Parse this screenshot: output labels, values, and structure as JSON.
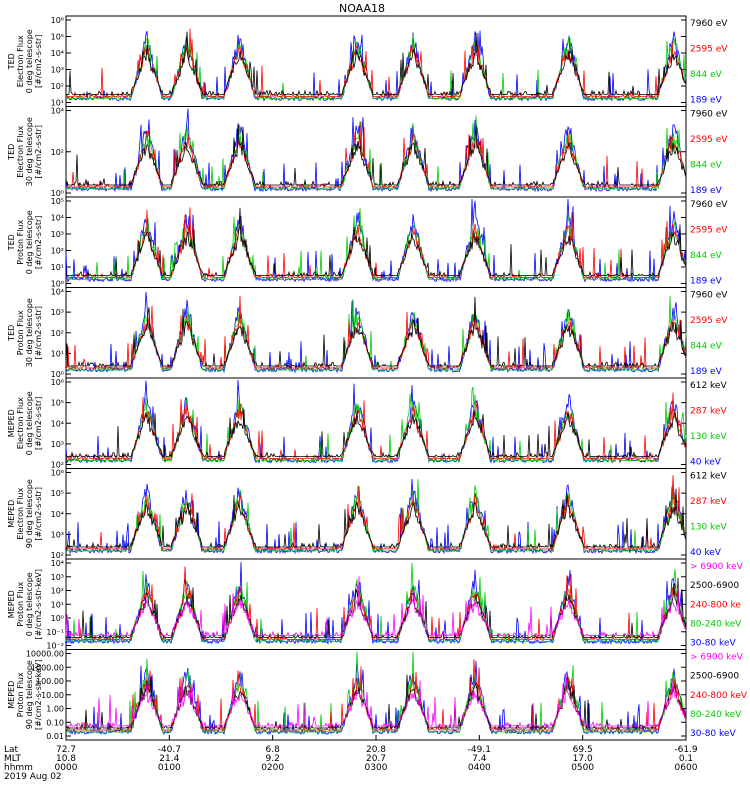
{
  "title": "NOAA18",
  "colors": {
    "black": "#000000",
    "red": "#ff0000",
    "green": "#00cc00",
    "blue": "#0000ff",
    "magenta": "#ff00ff"
  },
  "chart_data": [
    {
      "type": "line",
      "ylabel": [
        "TED",
        "Electron Flux",
        "0 deg telescope",
        "[#/cm2-s-str]"
      ],
      "yscale": "log",
      "yticks": [
        "10¹",
        "10²",
        "10³",
        "10⁴",
        "10⁵",
        "10⁶"
      ],
      "legend": [
        {
          "label": "7960 eV",
          "color": "#000000"
        },
        {
          "label": "2595 eV",
          "color": "#ff0000"
        },
        {
          "label": "844 eV",
          "color": "#00cc00"
        },
        {
          "label": "189 eV",
          "color": "#0000ff"
        }
      ]
    },
    {
      "type": "line",
      "ylabel": [
        "TED",
        "Electron Flux",
        "30 deg telescope",
        "[#/cm2-s-str]"
      ],
      "yscale": "log",
      "yticks": [
        "10⁰",
        "10²",
        "10⁴"
      ],
      "legend": [
        {
          "label": "7960 eV",
          "color": "#000000"
        },
        {
          "label": "2595 eV",
          "color": "#ff0000"
        },
        {
          "label": "844 eV",
          "color": "#00cc00"
        },
        {
          "label": "189 eV",
          "color": "#0000ff"
        }
      ]
    },
    {
      "type": "line",
      "ylabel": [
        "TED",
        "Proton Flux",
        "0 deg telescope",
        "[#/cm2-s-str]"
      ],
      "yscale": "log",
      "yticks": [
        "10⁰",
        "10¹",
        "10²",
        "10³",
        "10⁴",
        "10⁵"
      ],
      "legend": [
        {
          "label": "7960 eV",
          "color": "#000000"
        },
        {
          "label": "2595 eV",
          "color": "#ff0000"
        },
        {
          "label": "844 eV",
          "color": "#00cc00"
        },
        {
          "label": "189 eV",
          "color": "#0000ff"
        }
      ]
    },
    {
      "type": "line",
      "ylabel": [
        "TED",
        "Proton Flux",
        "30 deg telescope",
        "[#/cm2-s-str]"
      ],
      "yscale": "log",
      "yticks": [
        "10⁰",
        "10¹",
        "10²",
        "10³",
        "10⁴"
      ],
      "legend": [
        {
          "label": "7960 eV",
          "color": "#000000"
        },
        {
          "label": "2595 eV",
          "color": "#ff0000"
        },
        {
          "label": "844 eV",
          "color": "#00cc00"
        },
        {
          "label": "189 eV",
          "color": "#0000ff"
        }
      ]
    },
    {
      "type": "line",
      "ylabel": [
        "MEPED",
        "Electron Flux",
        "0 deg telescope",
        "[#/cm2-s-str]"
      ],
      "yscale": "log",
      "yticks": [
        "10²",
        "10³",
        "10⁴",
        "10⁵",
        "10⁶"
      ],
      "legend": [
        {
          "label": "612 keV",
          "color": "#000000"
        },
        {
          "label": "287 keV",
          "color": "#ff0000"
        },
        {
          "label": "130 keV",
          "color": "#00cc00"
        },
        {
          "label": "40 keV",
          "color": "#0000ff"
        }
      ]
    },
    {
      "type": "line",
      "ylabel": [
        "MEPED",
        "Electron Flux",
        "90 deg telescope",
        "[#/cm2-s-str]"
      ],
      "yscale": "log",
      "yticks": [
        "10²",
        "10³",
        "10⁴",
        "10⁵",
        "10⁶"
      ],
      "legend": [
        {
          "label": "612 keV",
          "color": "#000000"
        },
        {
          "label": "287 keV",
          "color": "#ff0000"
        },
        {
          "label": "130 keV",
          "color": "#00cc00"
        },
        {
          "label": "40 keV",
          "color": "#0000ff"
        }
      ]
    },
    {
      "type": "line",
      "ylabel": [
        "MEPED",
        "Proton Flux",
        "0 deg telescope",
        "[#/cm2-s-str-keV]"
      ],
      "yscale": "log",
      "yticks": [
        "10⁻²",
        "10⁻¹",
        "10⁰",
        "10¹",
        "10²",
        "10³",
        "10⁴"
      ],
      "legend": [
        {
          "label": "> 6900 keV",
          "color": "#ff00ff"
        },
        {
          "label": "2500-6900",
          "color": "#000000"
        },
        {
          "label": "240-800 ke",
          "color": "#ff0000"
        },
        {
          "label": "80-240 keV",
          "color": "#00cc00"
        },
        {
          "label": "30-80 keV",
          "color": "#0000ff"
        }
      ]
    },
    {
      "type": "line",
      "ylabel": [
        "MEPED",
        "Proton Flux",
        "90 deg telescope",
        "[#/cm2-s-str-keV]"
      ],
      "yscale": "log",
      "yticks": [
        "0.01",
        "0.10",
        "1.00",
        "10.00",
        "100.00",
        "1000.00",
        "10000.00"
      ],
      "legend": [
        {
          "label": "> 6900 keV",
          "color": "#ff00ff"
        },
        {
          "label": "2500-6900",
          "color": "#000000"
        },
        {
          "label": "240-800 keV",
          "color": "#ff0000"
        },
        {
          "label": "80-240 keV",
          "color": "#00cc00"
        },
        {
          "label": "30-80 keV",
          "color": "#0000ff"
        }
      ]
    }
  ],
  "x_axis": {
    "row_labels": [
      "Lat",
      "MLT",
      "hhmm"
    ],
    "ticks": [
      {
        "lat": "72.7",
        "mlt": "10.8",
        "hhmm": "0000"
      },
      {
        "lat": "-40.7",
        "mlt": "21.4",
        "hhmm": "0100"
      },
      {
        "lat": "6.8",
        "mlt": "9.2",
        "hhmm": "0200"
      },
      {
        "lat": "20.8",
        "mlt": "20.7",
        "hhmm": "0300"
      },
      {
        "lat": "-49.1",
        "mlt": "7.4",
        "hhmm": "0400"
      },
      {
        "lat": "69.5",
        "mlt": "17.0",
        "hhmm": "0500"
      },
      {
        "lat": "-61.9",
        "mlt": "0.1",
        "hhmm": "0600"
      }
    ],
    "date": "2019 Aug 02"
  }
}
